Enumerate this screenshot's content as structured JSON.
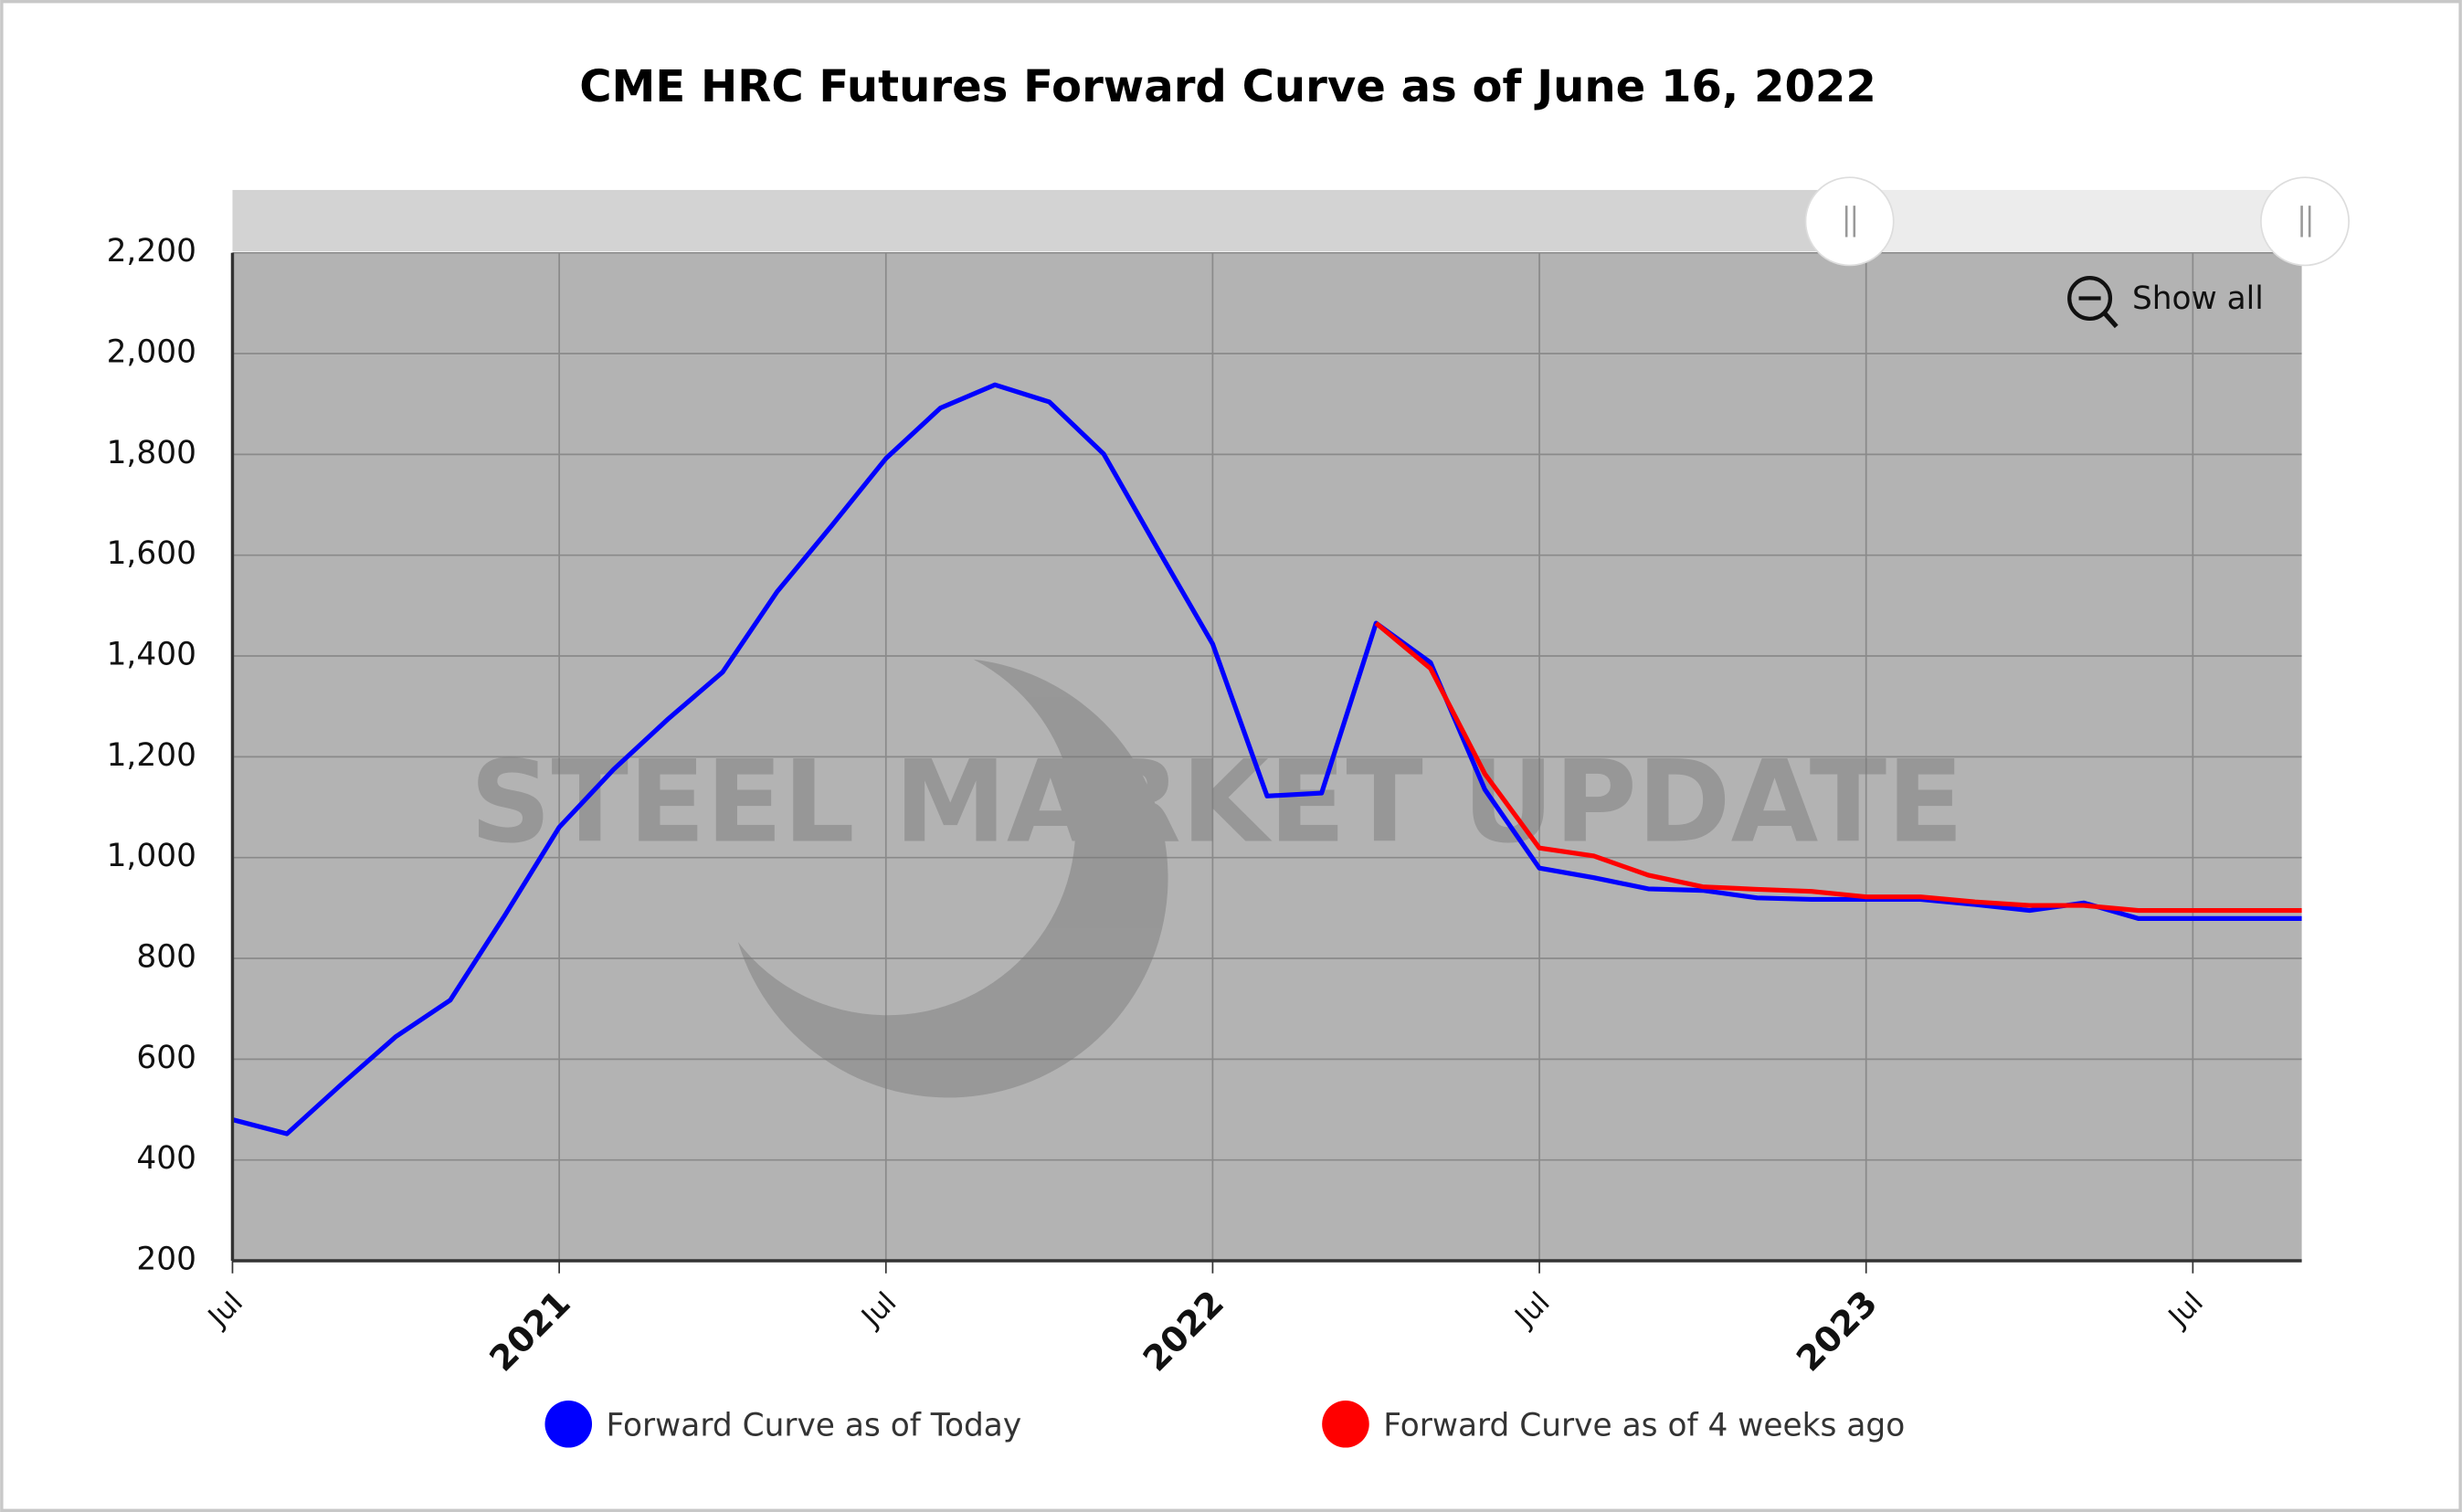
{
  "chart_data": {
    "type": "line",
    "title": "CME HRC Futures Forward Curve as of June 16, 2022",
    "watermark": "STEEL MARKET UPDATE",
    "reset_zoom": "Show all",
    "x": [
      "2020-07",
      "2020-08",
      "2020-09",
      "2020-10",
      "2020-11",
      "2020-12",
      "2021-01",
      "2021-02",
      "2021-03",
      "2021-04",
      "2021-05",
      "2021-06",
      "2021-07",
      "2021-08",
      "2021-09",
      "2021-10",
      "2021-11",
      "2021-12",
      "2022-01",
      "2022-02",
      "2022-03",
      "2022-04",
      "2022-05",
      "2022-06",
      "2022-07",
      "2022-08",
      "2022-09",
      "2022-10",
      "2022-11",
      "2022-12",
      "2023-01",
      "2023-02",
      "2023-03",
      "2023-04",
      "2023-05",
      "2023-06",
      "2023-07",
      "2023-08",
      "2023-09"
    ],
    "series": [
      {
        "name": "Forward Curve as of Today",
        "color": "#0000ff",
        "values": [
          480,
          452,
          550,
          645,
          717,
          885,
          1060,
          1175,
          1275,
          1368,
          1527,
          1658,
          1792,
          1892,
          1938,
          1904,
          1801,
          1611,
          1424,
          1122,
          1128,
          1465,
          1387,
          1135,
          979,
          960,
          938,
          935,
          920,
          917,
          917,
          917,
          907,
          895,
          910,
          879,
          879,
          879,
          879
        ]
      },
      {
        "name": "Forward Curve as of 4 weeks ago",
        "color": "#ff0000",
        "values": [
          null,
          null,
          null,
          null,
          null,
          null,
          null,
          null,
          null,
          null,
          null,
          null,
          null,
          null,
          null,
          null,
          null,
          null,
          null,
          null,
          null,
          1465,
          1375,
          1166,
          1019,
          1003,
          965,
          942,
          937,
          933,
          922,
          922,
          912,
          905,
          905,
          895,
          895,
          895,
          895
        ]
      }
    ],
    "xlim": [
      "2020-07",
      "2023-09"
    ],
    "xticks": [
      {
        "value": "2020-07",
        "label": "Jul"
      },
      {
        "value": "2021-01",
        "label": "2021"
      },
      {
        "value": "2021-07",
        "label": "Jul"
      },
      {
        "value": "2022-01",
        "label": "2022"
      },
      {
        "value": "2022-07",
        "label": "Jul"
      },
      {
        "value": "2023-01",
        "label": "2023"
      },
      {
        "value": "2023-07",
        "label": "Jul"
      }
    ],
    "ylim": [
      200,
      2200
    ],
    "yticks": [
      200,
      400,
      600,
      800,
      {
        "value": 1000,
        "label": "1,000"
      },
      {
        "value": 1200,
        "label": "1,200"
      },
      {
        "value": 1400,
        "label": "1,400"
      },
      {
        "value": 1600,
        "label": "1,600"
      },
      {
        "value": 1800,
        "label": "1,800"
      },
      {
        "value": 2000,
        "label": "2,000"
      },
      {
        "value": 2200,
        "label": "2,200"
      }
    ],
    "grid": true,
    "legend": "bottom"
  }
}
